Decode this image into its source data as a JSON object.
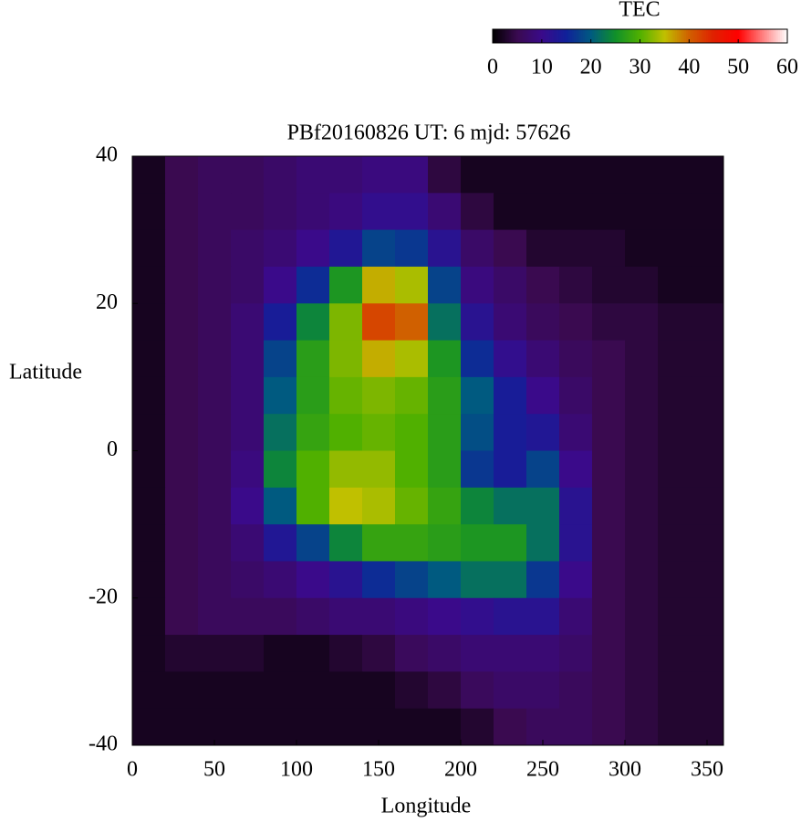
{
  "chart_data": {
    "type": "heatmap",
    "title": "PBf20160826  UT: 6  mjd: 57626",
    "x_label": "Longitude",
    "y_label": "Latitude",
    "xlim": [
      0,
      360
    ],
    "xticks": [
      0,
      50,
      100,
      150,
      200,
      250,
      300,
      350
    ],
    "ylim": [
      -40,
      40
    ],
    "yticks": [
      -40,
      -20,
      0,
      20,
      40
    ],
    "x": [
      10,
      30,
      50,
      70,
      90,
      110,
      130,
      150,
      170,
      190,
      210,
      230,
      250,
      270,
      290,
      310,
      330,
      350
    ],
    "y": [
      37.5,
      32.5,
      27.5,
      22.5,
      17.5,
      12.5,
      7.5,
      2.5,
      -2.5,
      -7.5,
      -12.5,
      -17.5,
      -22.5,
      -27.5,
      -32.5,
      -37.5
    ],
    "values": [
      [
        2,
        5,
        6,
        6,
        7,
        8,
        8,
        9,
        9,
        4,
        2,
        2,
        2,
        2,
        2,
        2,
        2,
        2
      ],
      [
        2,
        5,
        6,
        6,
        7,
        8,
        9,
        11,
        11,
        8,
        4,
        2,
        2,
        2,
        2,
        2,
        2,
        2
      ],
      [
        2,
        5,
        6,
        7,
        8,
        10,
        13,
        18,
        17,
        12,
        7,
        5,
        3,
        3,
        3,
        2,
        2,
        2
      ],
      [
        2,
        5,
        6,
        7,
        10,
        16,
        26,
        36,
        34,
        18,
        9,
        7,
        5,
        4,
        3,
        3,
        2,
        2
      ],
      [
        2,
        5,
        6,
        8,
        14,
        24,
        32,
        42,
        40,
        22,
        12,
        8,
        6,
        5,
        4,
        4,
        3,
        3
      ],
      [
        2,
        5,
        6,
        8,
        18,
        27,
        32,
        36,
        34,
        26,
        16,
        11,
        8,
        6,
        5,
        4,
        3,
        3
      ],
      [
        2,
        5,
        6,
        8,
        20,
        27,
        31,
        32,
        31,
        27,
        20,
        14,
        10,
        7,
        5,
        4,
        3,
        3
      ],
      [
        2,
        5,
        6,
        8,
        22,
        28,
        30,
        31,
        30,
        27,
        19,
        14,
        13,
        8,
        5,
        4,
        3,
        3
      ],
      [
        2,
        5,
        6,
        9,
        24,
        30,
        33,
        33,
        30,
        27,
        17,
        14,
        18,
        10,
        5,
        4,
        3,
        3
      ],
      [
        2,
        5,
        6,
        10,
        20,
        30,
        35,
        34,
        31,
        28,
        24,
        22,
        22,
        12,
        5,
        4,
        3,
        3
      ],
      [
        2,
        5,
        6,
        8,
        13,
        18,
        24,
        28,
        28,
        27,
        26,
        26,
        22,
        12,
        5,
        4,
        3,
        3
      ],
      [
        2,
        5,
        6,
        7,
        8,
        10,
        12,
        16,
        18,
        20,
        22,
        22,
        17,
        10,
        5,
        4,
        3,
        3
      ],
      [
        2,
        5,
        6,
        6,
        6,
        7,
        8,
        8,
        9,
        10,
        11,
        12,
        12,
        8,
        5,
        4,
        3,
        3
      ],
      [
        2,
        3,
        3,
        3,
        2,
        2,
        3,
        4,
        6,
        7,
        8,
        8,
        8,
        7,
        5,
        4,
        3,
        3
      ],
      [
        2,
        2,
        2,
        2,
        2,
        2,
        2,
        2,
        3,
        4,
        6,
        7,
        7,
        6,
        5,
        4,
        3,
        3
      ],
      [
        2,
        2,
        2,
        2,
        2,
        2,
        2,
        2,
        2,
        2,
        3,
        5,
        6,
        6,
        5,
        4,
        3,
        3
      ]
    ],
    "colorbar": {
      "title": "TEC",
      "lim": [
        0,
        60
      ],
      "ticks": [
        0,
        10,
        20,
        30,
        40,
        50,
        60
      ],
      "colors": [
        "#000000",
        "#3a0a50",
        "#3a0a8a",
        "#10209a",
        "#005a80",
        "#10902a",
        "#50b000",
        "#c0c000",
        "#d06000",
        "#e02000",
        "#ff0000",
        "#ff8080",
        "#ffffff"
      ]
    }
  }
}
